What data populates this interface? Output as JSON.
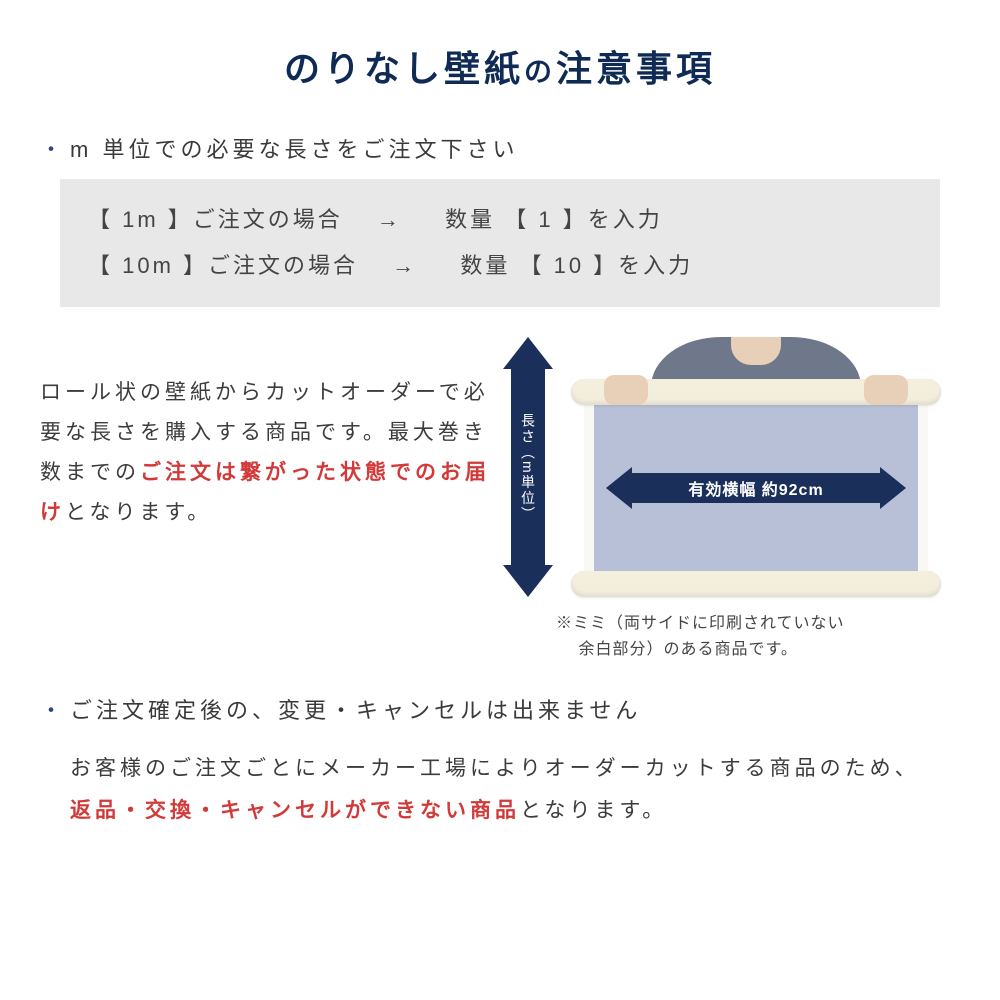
{
  "colors": {
    "title": "#0e2a55",
    "text": "#3c3c3c",
    "highlight": "#d23a3a",
    "arrow": "#1a2f5a",
    "example_bg": "#e8e8e8",
    "paper": "#b7c0d6",
    "roll": "#f4eedd"
  },
  "title_main": "のりなし壁紙",
  "title_connector": "の",
  "title_tail": "注意事項",
  "bullet1": "m 単位での必要な長さをご注文下さい",
  "example": {
    "row1": "【  1m  】ご注文の場合　 → 　 数量 【  1  】を入力",
    "row2": "【 10m 】ご注文の場合　 → 　 数量 【  10  】を入力"
  },
  "mid_text_1": "ロール状の壁紙からカットオーダーで必要な長さを購入する商品です。最大巻き数までの",
  "mid_highlight": "ご注文は繋がった状態でのお届け",
  "mid_text_2": "となります。",
  "v_arrow_label": "長さ（m単位）",
  "h_arrow_label": "有効横幅 約92cm",
  "mimi_note": "※ミミ（両サイドに印刷されていない\n　 余白部分）のある商品です。",
  "bullet2": "ご注文確定後の、変更・キャンセルは出来ません",
  "body2_a": "お客様のご注文ごとにメーカー工場によりオーダーカットする商品のため、",
  "body2_highlight": "返品・交換・キャンセルができない商品",
  "body2_b": "となります。"
}
